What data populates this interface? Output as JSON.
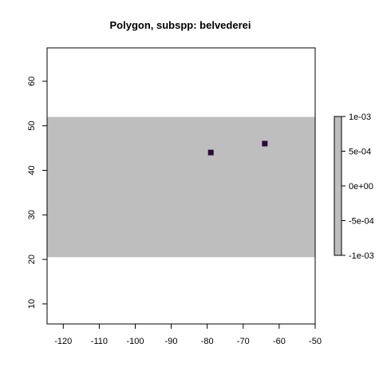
{
  "chart_data": {
    "type": "heatmap",
    "title": "Polygon, subspp: belvederei",
    "xlim": [
      -124.5,
      -50
    ],
    "ylim": [
      5.5,
      67.5
    ],
    "x_ticks": [
      -120,
      -110,
      -100,
      -90,
      -80,
      -70,
      -60,
      -50
    ],
    "x_tick_labels": [
      "-120",
      "-110",
      "-100",
      "-90",
      "-80",
      "-70",
      "-60",
      "-50"
    ],
    "y_ticks": [
      10,
      20,
      30,
      40,
      50,
      60
    ],
    "y_tick_labels": [
      "10",
      "20",
      "30",
      "40",
      "50",
      "60"
    ],
    "grid": false,
    "background_band": {
      "ymin": 20.5,
      "ymax": 52,
      "color": "#bebebe"
    },
    "cells": [
      {
        "x": -79,
        "y": 44,
        "color": "#2d0a3a"
      },
      {
        "x": -64,
        "y": 46,
        "color": "#2d0a3a"
      }
    ],
    "legend": {
      "placement": "right",
      "color": "#bebebe",
      "ticks": [
        0.001,
        0.0005,
        0,
        -0.0005,
        -0.001
      ],
      "tick_labels": [
        "1e-03",
        "5e-04",
        "0e+00",
        "-5e-04",
        "-1e-03"
      ]
    }
  }
}
